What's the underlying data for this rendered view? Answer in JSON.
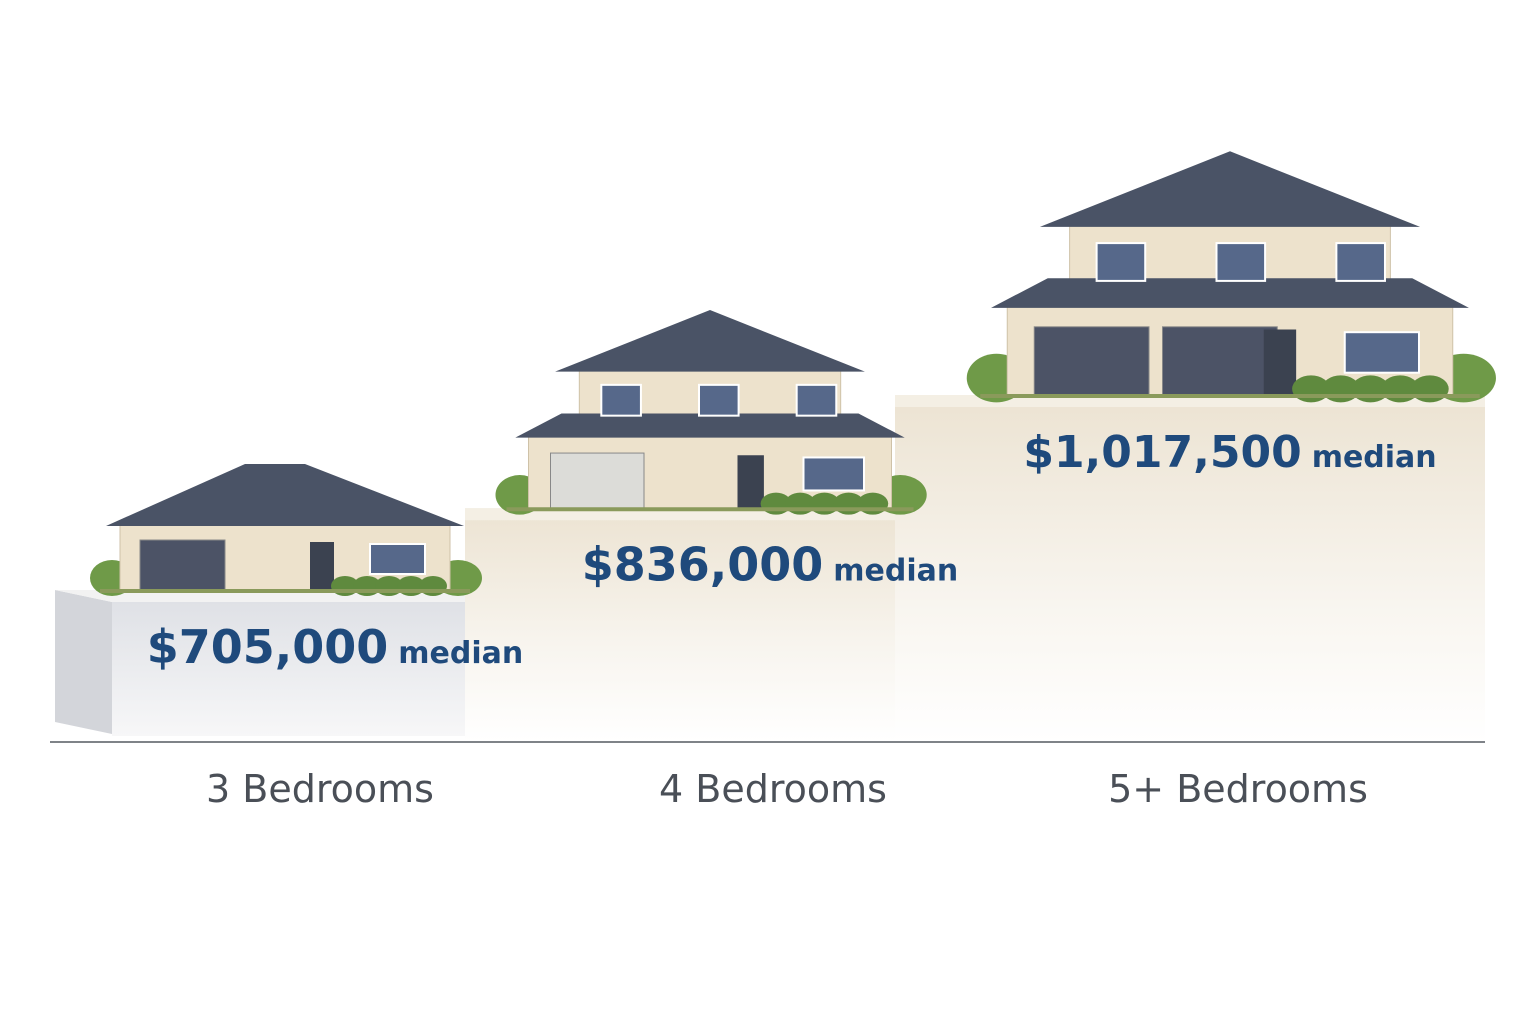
{
  "chart_data": {
    "type": "bar",
    "categories": [
      "3 Bedrooms",
      "4 Bedrooms",
      "5+ Bedrooms"
    ],
    "values": [
      705000,
      836000,
      1017500
    ],
    "value_labels": [
      "$705,000",
      "$836,000",
      "$1,017,500"
    ],
    "value_suffix": "median",
    "title": "",
    "xlabel": "",
    "ylabel": "",
    "grid": false,
    "colors": {
      "price_text": "#1f4a7c",
      "category_text": "#4a4f57",
      "pedestal_first": "#e4e6ea",
      "pedestal_other": "#ece4d4",
      "roof": "#4a5366",
      "wall": "#ede2cc"
    }
  }
}
